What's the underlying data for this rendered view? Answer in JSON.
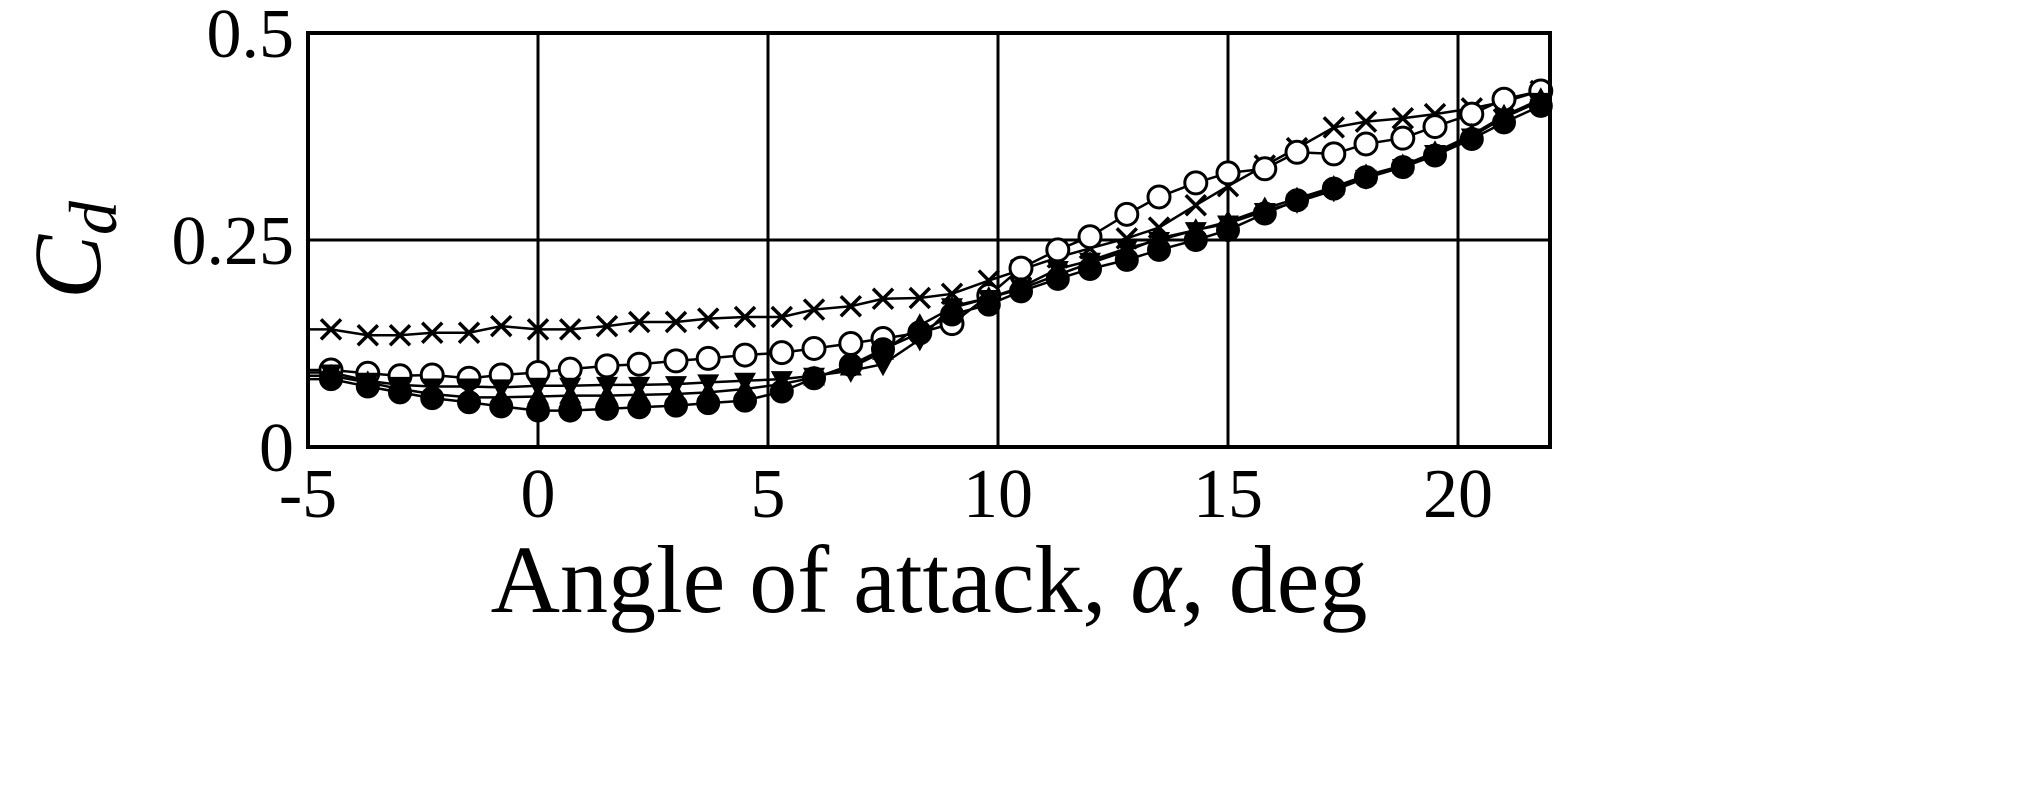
{
  "chart_data": {
    "type": "line",
    "xlabel_parts": [
      "Angle of attack, ",
      "α",
      ", deg"
    ],
    "ylabel": {
      "main": "C",
      "sub": "d"
    },
    "xlim": [
      -5,
      22
    ],
    "ylim": [
      0,
      0.5
    ],
    "x_ticks": [
      -5,
      0,
      5,
      10,
      15,
      20
    ],
    "x_tick_labels": [
      "-5",
      "0",
      "5",
      "10",
      "15",
      "20"
    ],
    "y_ticks": [
      0,
      0.25,
      0.5
    ],
    "y_tick_labels": [
      "0",
      "0.25",
      "0.5"
    ],
    "grid": true,
    "series": [
      {
        "marker": "cross",
        "x": [
          -4.5,
          -3.7,
          -3.0,
          -2.3,
          -1.5,
          -0.8,
          0,
          0.7,
          1.5,
          2.2,
          3.0,
          3.7,
          4.5,
          5.3,
          6.0,
          6.8,
          7.5,
          8.3,
          9.0,
          9.8,
          10.5,
          11.3,
          12.0,
          12.8,
          13.5,
          14.3,
          15.0,
          15.8,
          16.5,
          17.3,
          18.0,
          18.8,
          19.5,
          20.3,
          21.0,
          21.8
        ],
        "y": [
          0.142,
          0.135,
          0.135,
          0.138,
          0.138,
          0.146,
          0.142,
          0.142,
          0.146,
          0.151,
          0.151,
          0.155,
          0.157,
          0.157,
          0.166,
          0.17,
          0.179,
          0.18,
          0.185,
          0.201,
          0.214,
          0.229,
          0.24,
          0.252,
          0.265,
          0.292,
          0.315,
          0.34,
          0.361,
          0.386,
          0.393,
          0.397,
          0.402,
          0.409,
          0.417,
          0.43
        ]
      },
      {
        "marker": "open-circle",
        "x": [
          -4.5,
          -3.7,
          -3.0,
          -2.3,
          -1.5,
          -0.8,
          0,
          0.7,
          1.5,
          2.2,
          3.0,
          3.7,
          4.5,
          5.3,
          6.0,
          6.8,
          7.5,
          8.3,
          9.0,
          9.8,
          10.5,
          11.3,
          12.0,
          12.8,
          13.5,
          14.3,
          15.0,
          15.8,
          16.5,
          17.3,
          18.0,
          18.8,
          19.5,
          20.3,
          21.0,
          21.8
        ],
        "y": [
          0.093,
          0.089,
          0.086,
          0.087,
          0.083,
          0.087,
          0.09,
          0.094,
          0.098,
          0.1,
          0.104,
          0.107,
          0.111,
          0.114,
          0.119,
          0.125,
          0.131,
          0.138,
          0.149,
          0.183,
          0.216,
          0.238,
          0.254,
          0.281,
          0.302,
          0.319,
          0.331,
          0.336,
          0.356,
          0.354,
          0.366,
          0.373,
          0.387,
          0.402,
          0.42,
          0.43
        ]
      },
      {
        "marker": "filled-triangle-down",
        "x": [
          -4.5,
          -3.7,
          -3.0,
          -2.3,
          -1.5,
          -0.8,
          0,
          0.7,
          1.5,
          2.2,
          3.0,
          3.7,
          4.5,
          5.3,
          6.0,
          6.8,
          7.5,
          8.3,
          9.0,
          9.8,
          10.5,
          11.3,
          12.0,
          12.8,
          13.5,
          14.3,
          15.0,
          15.8,
          16.5,
          17.3,
          18.0,
          18.8,
          19.5,
          20.3,
          21.0,
          21.8
        ],
        "y": [
          0.09,
          0.08,
          0.075,
          0.073,
          0.073,
          0.072,
          0.074,
          0.074,
          0.075,
          0.075,
          0.076,
          0.078,
          0.08,
          0.082,
          0.086,
          0.092,
          0.1,
          0.13,
          0.17,
          0.18,
          0.193,
          0.215,
          0.225,
          0.24,
          0.25,
          0.262,
          0.27,
          0.285,
          0.296,
          0.31,
          0.325,
          0.338,
          0.355,
          0.375,
          0.398,
          0.418
        ]
      },
      {
        "marker": "filled-triangle-up",
        "x": [
          -4.5,
          -3.7,
          -3.0,
          -2.3,
          -1.5,
          -0.8,
          0,
          0.7,
          1.5,
          2.2,
          3.0,
          3.7,
          4.5,
          5.3,
          6.0,
          6.8,
          7.5,
          8.3,
          9.0,
          9.8,
          10.5,
          11.3,
          12.0,
          12.8,
          13.5,
          14.3,
          15.0,
          15.8,
          16.5,
          17.3,
          18.0,
          18.8,
          19.5,
          20.3,
          21.0,
          21.8
        ],
        "y": [
          0.086,
          0.078,
          0.07,
          0.064,
          0.06,
          0.06,
          0.061,
          0.062,
          0.062,
          0.063,
          0.064,
          0.066,
          0.07,
          0.076,
          0.084,
          0.096,
          0.115,
          0.147,
          0.168,
          0.18,
          0.191,
          0.208,
          0.222,
          0.237,
          0.252,
          0.262,
          0.272,
          0.288,
          0.3,
          0.314,
          0.328,
          0.34,
          0.356,
          0.377,
          0.4,
          0.42
        ]
      },
      {
        "marker": "filled-circle",
        "x": [
          -4.5,
          -3.7,
          -3.0,
          -2.3,
          -1.5,
          -0.8,
          0,
          0.7,
          1.5,
          2.2,
          3.0,
          3.7,
          4.5,
          5.3,
          6.0,
          6.8,
          7.5,
          8.3,
          9.0,
          9.8,
          10.5,
          11.3,
          12.0,
          12.8,
          13.5,
          14.3,
          15.0,
          15.8,
          16.5,
          17.3,
          18.0,
          18.8,
          19.5,
          20.3,
          21.0,
          21.8
        ],
        "y": [
          0.082,
          0.073,
          0.066,
          0.059,
          0.054,
          0.049,
          0.044,
          0.044,
          0.046,
          0.048,
          0.05,
          0.053,
          0.056,
          0.067,
          0.083,
          0.099,
          0.118,
          0.138,
          0.16,
          0.172,
          0.188,
          0.203,
          0.215,
          0.226,
          0.238,
          0.25,
          0.262,
          0.282,
          0.298,
          0.312,
          0.326,
          0.338,
          0.352,
          0.372,
          0.392,
          0.412
        ]
      }
    ]
  }
}
